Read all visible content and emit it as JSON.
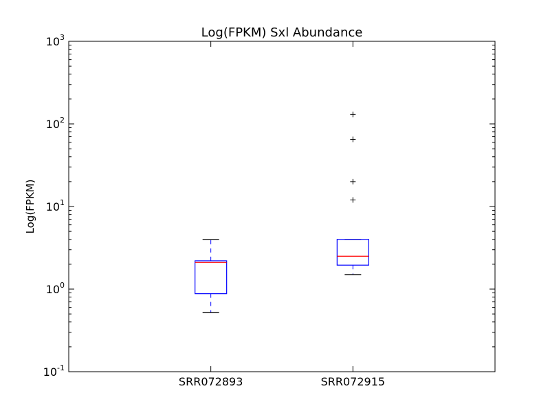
{
  "chart_data": {
    "type": "box",
    "title": "Log(FPKM) Sxl Abundance",
    "xlabel": "",
    "ylabel": "Log(FPKM)",
    "yscale": "log",
    "ylim": [
      0.1,
      1000
    ],
    "yticks": [
      {
        "value": 0.1,
        "base": "10",
        "exp": "-1"
      },
      {
        "value": 1,
        "base": "10",
        "exp": "0"
      },
      {
        "value": 10,
        "base": "10",
        "exp": "1"
      },
      {
        "value": 100,
        "base": "10",
        "exp": "2"
      },
      {
        "value": 1000,
        "base": "10",
        "exp": "3"
      }
    ],
    "grid": false,
    "categories": [
      "SRR072893",
      "SRR072915"
    ],
    "boxes": [
      {
        "category": "SRR072893",
        "whisker_low": 0.52,
        "q1": 0.88,
        "median": 2.1,
        "q3": 2.2,
        "whisker_high": 4.0,
        "outliers": []
      },
      {
        "category": "SRR072915",
        "whisker_low": 1.5,
        "q1": 1.95,
        "median": 2.5,
        "q3": 4.0,
        "whisker_high": 4.0,
        "outliers": [
          12,
          20,
          65,
          130
        ]
      }
    ],
    "colors": {
      "box": "#0000ff",
      "median": "#ff0000",
      "whisker": "#0000ff",
      "cap": "#000000",
      "outlier": "#000000"
    }
  }
}
